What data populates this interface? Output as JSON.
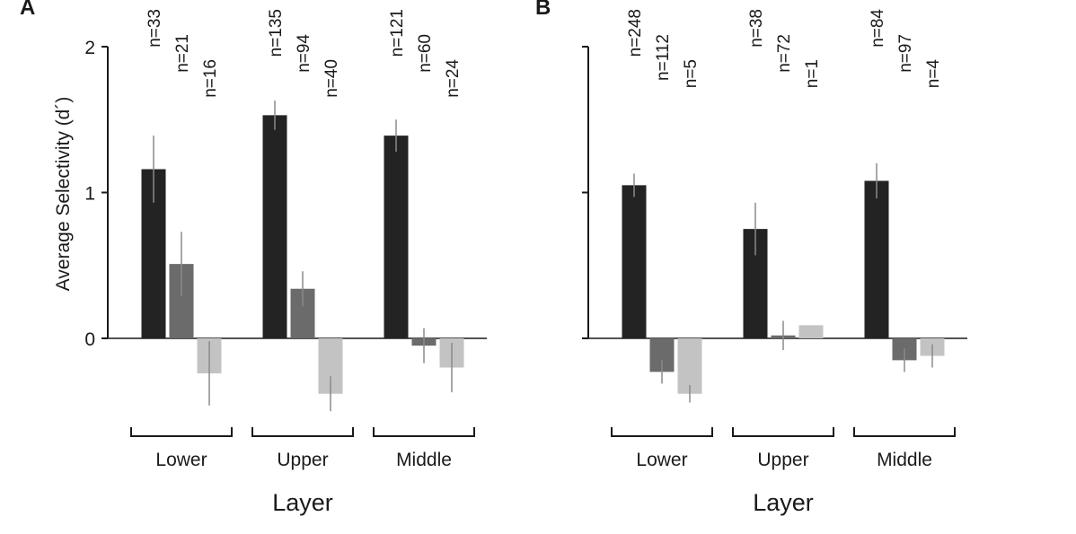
{
  "colors": {
    "series": [
      "#232323",
      "#6b6b6b",
      "#c3c3c3"
    ],
    "error_bar": "#8a8a8a",
    "axis": "#1a1a1a"
  },
  "chart_data": [
    {
      "type": "bar",
      "panel": "A",
      "categories": [
        "Lower",
        "Upper",
        "Middle"
      ],
      "xlabel": "Layer",
      "ylabel": "Average Selectivity (d´)",
      "ylim": [
        -0.6,
        2.0
      ],
      "yticks": [
        "0",
        "1",
        "2"
      ],
      "series": [
        {
          "values": [
            1.16,
            1.53,
            1.39
          ],
          "errors": [
            0.23,
            0.1,
            0.11
          ],
          "n": [
            "n=33",
            "n=135",
            "n=121"
          ]
        },
        {
          "values": [
            0.51,
            0.34,
            -0.05
          ],
          "errors": [
            0.22,
            0.12,
            0.12
          ],
          "n": [
            "n=21",
            "n=94",
            "n=60"
          ]
        },
        {
          "values": [
            -0.24,
            -0.38,
            -0.2
          ],
          "errors": [
            0.22,
            0.12,
            0.17
          ],
          "n": [
            "n=16",
            "n=40",
            "n=24"
          ]
        }
      ]
    },
    {
      "type": "bar",
      "panel": "B",
      "categories": [
        "Lower",
        "Upper",
        "Middle"
      ],
      "xlabel": "Layer",
      "ylabel": "",
      "ylim": [
        -0.6,
        2.0
      ],
      "yticks": [
        "",
        "",
        ""
      ],
      "series": [
        {
          "values": [
            1.05,
            0.75,
            1.08
          ],
          "errors": [
            0.08,
            0.18,
            0.12
          ],
          "n": [
            "n=248",
            "n=38",
            "n=84"
          ]
        },
        {
          "values": [
            -0.23,
            0.02,
            -0.15
          ],
          "errors": [
            0.08,
            0.1,
            0.08
          ],
          "n": [
            "n=112",
            "n=72",
            "n=97"
          ]
        },
        {
          "values": [
            -0.38,
            0.09,
            -0.12
          ],
          "errors": [
            0.06,
            0.0,
            0.08
          ],
          "n": [
            "n=5",
            "n=1",
            "n=4"
          ]
        }
      ]
    }
  ]
}
